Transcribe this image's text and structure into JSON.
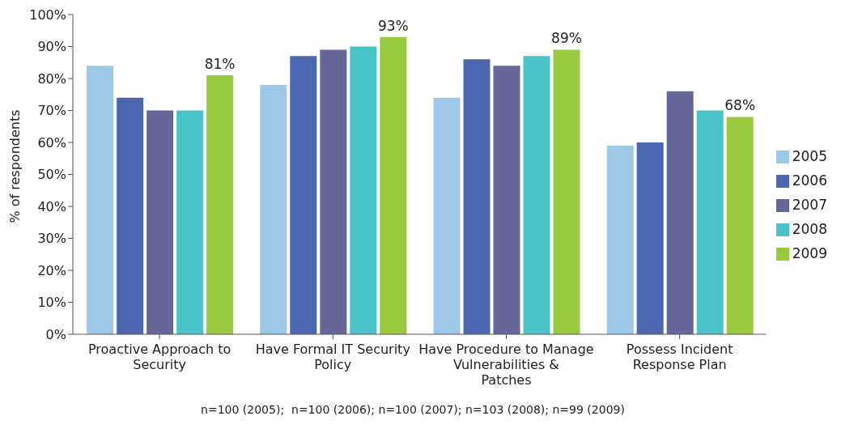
{
  "chart_data": {
    "type": "bar",
    "ylabel": "% of respondents",
    "categories": [
      "Proactive Approach to Security",
      "Have Formal IT Security Policy",
      "Have Procedure to Manage Vulnerabilities & Patches",
      "Possess Incident Response Plan"
    ],
    "series": [
      {
        "name": "2005",
        "color": "#9dc8e8",
        "values": [
          84,
          78,
          74,
          59
        ]
      },
      {
        "name": "2006",
        "color": "#4a67b0",
        "values": [
          74,
          87,
          86,
          60
        ]
      },
      {
        "name": "2007",
        "color": "#666699",
        "values": [
          70,
          89,
          84,
          76
        ]
      },
      {
        "name": "2008",
        "color": "#48c4c8",
        "values": [
          70,
          90,
          87,
          70
        ]
      },
      {
        "name": "2009",
        "color": "#99c93c",
        "values": [
          81,
          93,
          89,
          68
        ],
        "value_labels": [
          "81%",
          "93%",
          "89%",
          "68%"
        ]
      }
    ],
    "ylim": [
      0,
      100
    ],
    "yticks": [
      {
        "value": 0,
        "label": "0%"
      },
      {
        "value": 10,
        "label": "10%"
      },
      {
        "value": 20,
        "label": "20%"
      },
      {
        "value": 30,
        "label": "30%"
      },
      {
        "value": 40,
        "label": "40%"
      },
      {
        "value": 50,
        "label": "50%"
      },
      {
        "value": 60,
        "label": "60%"
      },
      {
        "value": 70,
        "label": "70%"
      },
      {
        "value": 80,
        "label": "80%"
      },
      {
        "value": 90,
        "label": "90%"
      },
      {
        "value": 100,
        "label": "100%"
      }
    ],
    "grid": false,
    "legend": "right",
    "annotations": [
      "n=100 (2005);  n=100 (2006); n=100 (2007); n=103 (2008); n=99 (2009)"
    ]
  }
}
